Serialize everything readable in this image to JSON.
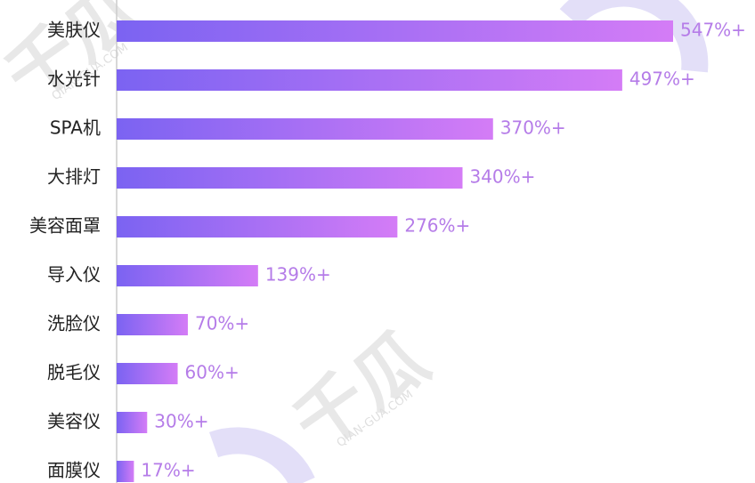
{
  "chart_data": {
    "type": "bar",
    "categories": [
      "美肤仪",
      "水光针",
      "SPA机",
      "大排灯",
      "美容面罩",
      "导入仪",
      "洗脸仪",
      "脱毛仪",
      "美容仪",
      "面膜仪"
    ],
    "values": [
      547,
      497,
      370,
      340,
      276,
      139,
      70,
      60,
      30,
      17
    ],
    "value_labels": [
      "547%+",
      "497%+",
      "370%+",
      "340%+",
      "276%+",
      "139%+",
      "70%+",
      "60%+",
      "30%+",
      "17%+"
    ],
    "color": [
      "#7b63f2",
      "#d47cf6"
    ],
    "watermark": "千瓜",
    "watermark_url": "QIAN-GUA.COM"
  }
}
